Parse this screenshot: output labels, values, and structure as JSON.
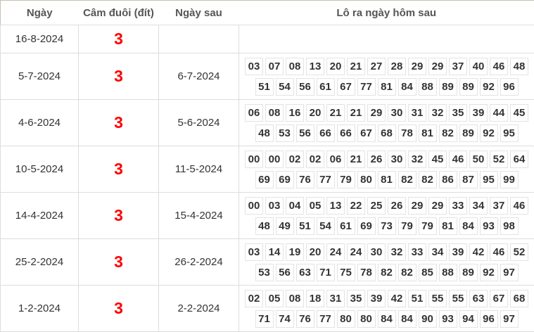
{
  "headers": [
    "Ngày",
    "Câm đuôi (đít)",
    "Ngày sau",
    "Lô ra ngày hôm sau"
  ],
  "rows": [
    {
      "date": "16-8-2024",
      "tail": "3",
      "next": "",
      "numbers": []
    },
    {
      "date": "5-7-2024",
      "tail": "3",
      "next": "6-7-2024",
      "numbers": [
        "03",
        "07",
        "08",
        "13",
        "20",
        "21",
        "27",
        "28",
        "29",
        "29",
        "37",
        "40",
        "46",
        "48",
        "51",
        "54",
        "56",
        "61",
        "67",
        "77",
        "81",
        "84",
        "88",
        "89",
        "89",
        "92",
        "96"
      ]
    },
    {
      "date": "4-6-2024",
      "tail": "3",
      "next": "5-6-2024",
      "numbers": [
        "06",
        "08",
        "16",
        "20",
        "21",
        "21",
        "29",
        "30",
        "31",
        "32",
        "35",
        "39",
        "44",
        "45",
        "48",
        "53",
        "56",
        "66",
        "66",
        "67",
        "68",
        "78",
        "81",
        "82",
        "89",
        "92",
        "95"
      ]
    },
    {
      "date": "10-5-2024",
      "tail": "3",
      "next": "11-5-2024",
      "numbers": [
        "00",
        "00",
        "02",
        "02",
        "06",
        "21",
        "26",
        "30",
        "32",
        "45",
        "46",
        "50",
        "52",
        "64",
        "69",
        "69",
        "76",
        "77",
        "79",
        "80",
        "81",
        "82",
        "82",
        "86",
        "87",
        "95",
        "99"
      ]
    },
    {
      "date": "14-4-2024",
      "tail": "3",
      "next": "15-4-2024",
      "numbers": [
        "00",
        "03",
        "04",
        "05",
        "13",
        "22",
        "25",
        "26",
        "29",
        "29",
        "33",
        "34",
        "37",
        "46",
        "48",
        "49",
        "51",
        "54",
        "61",
        "69",
        "73",
        "79",
        "79",
        "81",
        "84",
        "93",
        "98"
      ]
    },
    {
      "date": "25-2-2024",
      "tail": "3",
      "next": "26-2-2024",
      "numbers": [
        "03",
        "14",
        "19",
        "20",
        "24",
        "24",
        "30",
        "32",
        "33",
        "34",
        "39",
        "42",
        "46",
        "52",
        "53",
        "56",
        "63",
        "71",
        "75",
        "78",
        "82",
        "82",
        "85",
        "88",
        "89",
        "92",
        "97"
      ]
    },
    {
      "date": "1-2-2024",
      "tail": "3",
      "next": "2-2-2024",
      "numbers": [
        "02",
        "05",
        "08",
        "18",
        "31",
        "35",
        "39",
        "42",
        "51",
        "55",
        "55",
        "63",
        "67",
        "68",
        "71",
        "74",
        "76",
        "77",
        "80",
        "80",
        "84",
        "84",
        "90",
        "93",
        "94",
        "96",
        "97"
      ]
    }
  ],
  "colors": {
    "tail": "#ff0000",
    "border": "#dddddd",
    "outer_border": "#c9beb2"
  }
}
